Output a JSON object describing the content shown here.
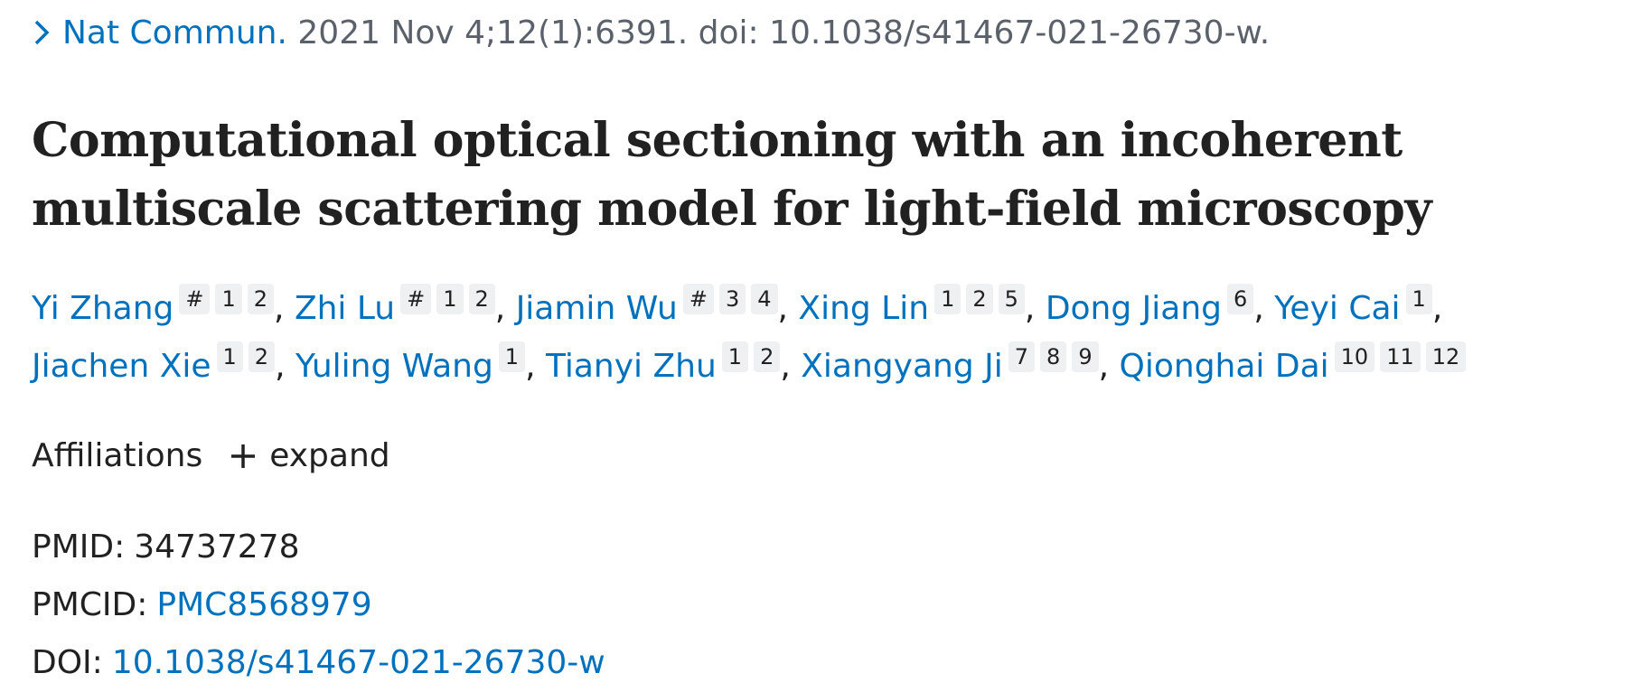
{
  "citation": {
    "journal": "Nat Commun.",
    "details": "2021 Nov 4;12(1):6391. doi: 10.1038/s41467-021-26730-w."
  },
  "title": "Computational optical sectioning with an incoherent multiscale scattering model for light-field microscopy",
  "author_separator": ",",
  "authors": [
    {
      "name": "Yi Zhang",
      "marks": [
        "#",
        "1",
        "2"
      ]
    },
    {
      "name": "Zhi Lu",
      "marks": [
        "#",
        "1",
        "2"
      ]
    },
    {
      "name": "Jiamin Wu",
      "marks": [
        "#",
        "3",
        "4"
      ]
    },
    {
      "name": "Xing Lin",
      "marks": [
        "1",
        "2",
        "5"
      ]
    },
    {
      "name": "Dong Jiang",
      "marks": [
        "6"
      ]
    },
    {
      "name": "Yeyi Cai",
      "marks": [
        "1"
      ]
    },
    {
      "name": "Jiachen Xie",
      "marks": [
        "1",
        "2"
      ]
    },
    {
      "name": "Yuling Wang",
      "marks": [
        "1"
      ]
    },
    {
      "name": "Tianyi Zhu",
      "marks": [
        "1",
        "2"
      ]
    },
    {
      "name": "Xiangyang Ji",
      "marks": [
        "7",
        "8",
        "9"
      ]
    },
    {
      "name": "Qionghai Dai",
      "marks": [
        "10",
        "11",
        "12"
      ]
    }
  ],
  "affiliations": {
    "label": "Affiliations",
    "toggle": "expand"
  },
  "identifiers": [
    {
      "label": "PMID:",
      "value": "34737278"
    },
    {
      "label": "PMCID:",
      "value": "PMC8568979"
    },
    {
      "label": "DOI:",
      "value": "10.1038/s41467-021-26730-w"
    }
  ]
}
